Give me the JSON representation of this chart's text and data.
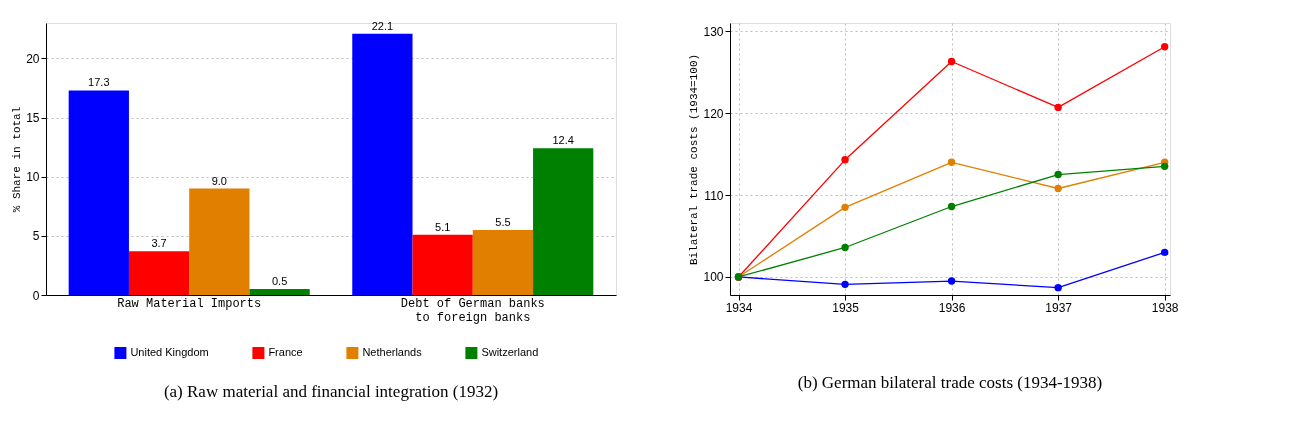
{
  "chart_data": [
    {
      "type": "bar",
      "title": "(a)  Raw material and financial integration (1932)",
      "ylabel": "% Share in total",
      "categories": [
        "Raw Material Imports",
        "Debt of German banks\nto foreign banks"
      ],
      "series": [
        {
          "name": "United Kingdom",
          "color": "#0000ff",
          "values": [
            17.3,
            22.1
          ]
        },
        {
          "name": "France",
          "color": "#ff0000",
          "values": [
            3.7,
            5.1
          ]
        },
        {
          "name": "Netherlands",
          "color": "#e07f00",
          "values": [
            9.0,
            5.5
          ]
        },
        {
          "name": "Switzerland",
          "color": "#008000",
          "values": [
            0.5,
            12.4
          ]
        }
      ],
      "ylim": [
        0,
        23
      ],
      "yticks": [
        0,
        5,
        10,
        15,
        20
      ],
      "grid": "y",
      "legend": "bottom",
      "value_labels": [
        [
          "17.3",
          "22.1"
        ],
        [
          "3.7",
          "5.1"
        ],
        [
          "9.0",
          "5.5"
        ],
        [
          "0.5",
          "12.4"
        ]
      ]
    },
    {
      "type": "line",
      "title": "(b)  German bilateral trade costs (1934-1938)",
      "ylabel": "Bilateral trade costs (1934=100)",
      "x": [
        1934,
        1935,
        1936,
        1937,
        1938
      ],
      "series": [
        {
          "name": "United Kingdom",
          "color": "#0000ff",
          "values": [
            100,
            99.1,
            99.5,
            98.7,
            103.0
          ]
        },
        {
          "name": "France",
          "color": "#ff0000",
          "values": [
            100,
            114.3,
            126.3,
            120.7,
            128.1
          ]
        },
        {
          "name": "Netherlands",
          "color": "#e07f00",
          "values": [
            100,
            108.5,
            114.0,
            110.8,
            114.0
          ]
        },
        {
          "name": "Switzerland",
          "color": "#008000",
          "values": [
            100,
            103.6,
            108.6,
            112.5,
            113.5
          ]
        }
      ],
      "xlim": [
        1933.92,
        1938.05
      ],
      "xticks": [
        1934,
        1935,
        1936,
        1937,
        1938
      ],
      "ylim": [
        97.8,
        131
      ],
      "yticks": [
        100,
        110,
        120,
        130
      ],
      "grid": true,
      "legend": "bottom",
      "marker": "circle",
      "line_style": "solid"
    }
  ]
}
